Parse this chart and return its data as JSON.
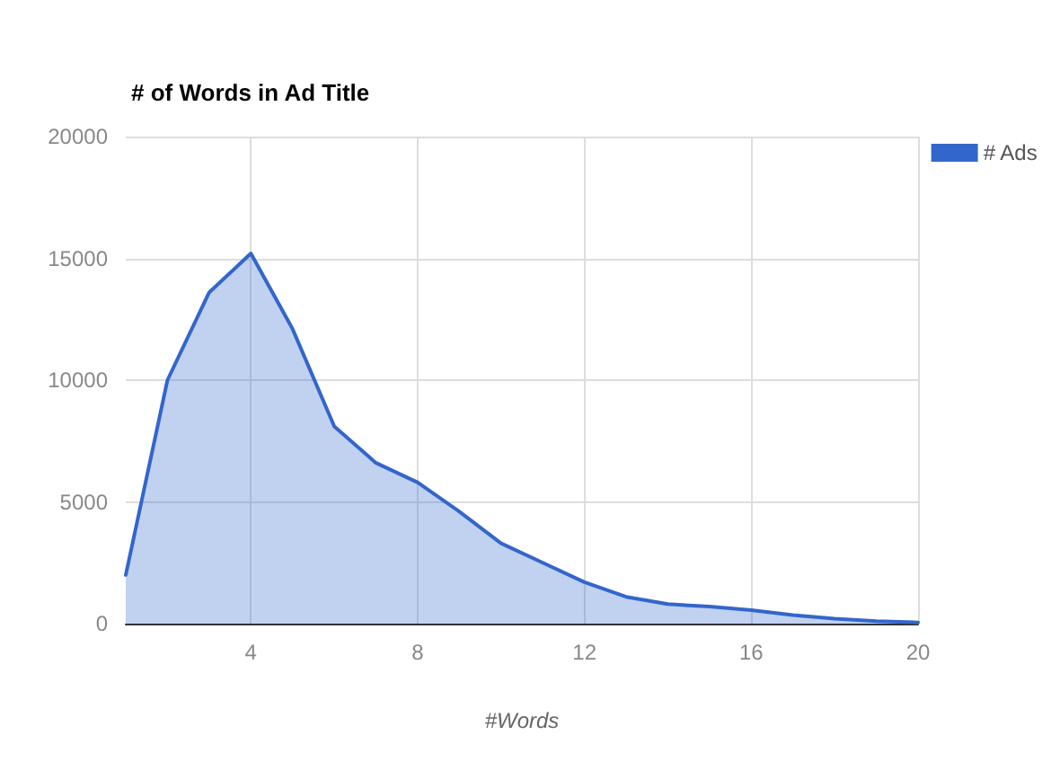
{
  "chart_data": {
    "type": "area",
    "title": "# of Words in Ad Title",
    "xlabel": "#Words",
    "x": [
      1,
      2,
      3,
      4,
      5,
      6,
      7,
      8,
      9,
      10,
      11,
      12,
      13,
      14,
      15,
      16,
      17,
      18,
      19,
      20
    ],
    "series": [
      {
        "name": "# Ads",
        "color": "#3366cc",
        "values": [
          2000,
          10000,
          13600,
          15200,
          12100,
          8100,
          6600,
          5800,
          4600,
          3300,
          2500,
          1700,
          1100,
          800,
          700,
          550,
          350,
          200,
          100,
          50
        ]
      }
    ],
    "xlim": [
      1,
      20
    ],
    "xticks": [
      4,
      8,
      12,
      16,
      20
    ],
    "ylim": [
      0,
      20000
    ],
    "yticks": [
      0,
      5000,
      10000,
      15000,
      20000
    ],
    "grid": true,
    "legend": "top right",
    "marker": "none",
    "line_style": "solid"
  }
}
